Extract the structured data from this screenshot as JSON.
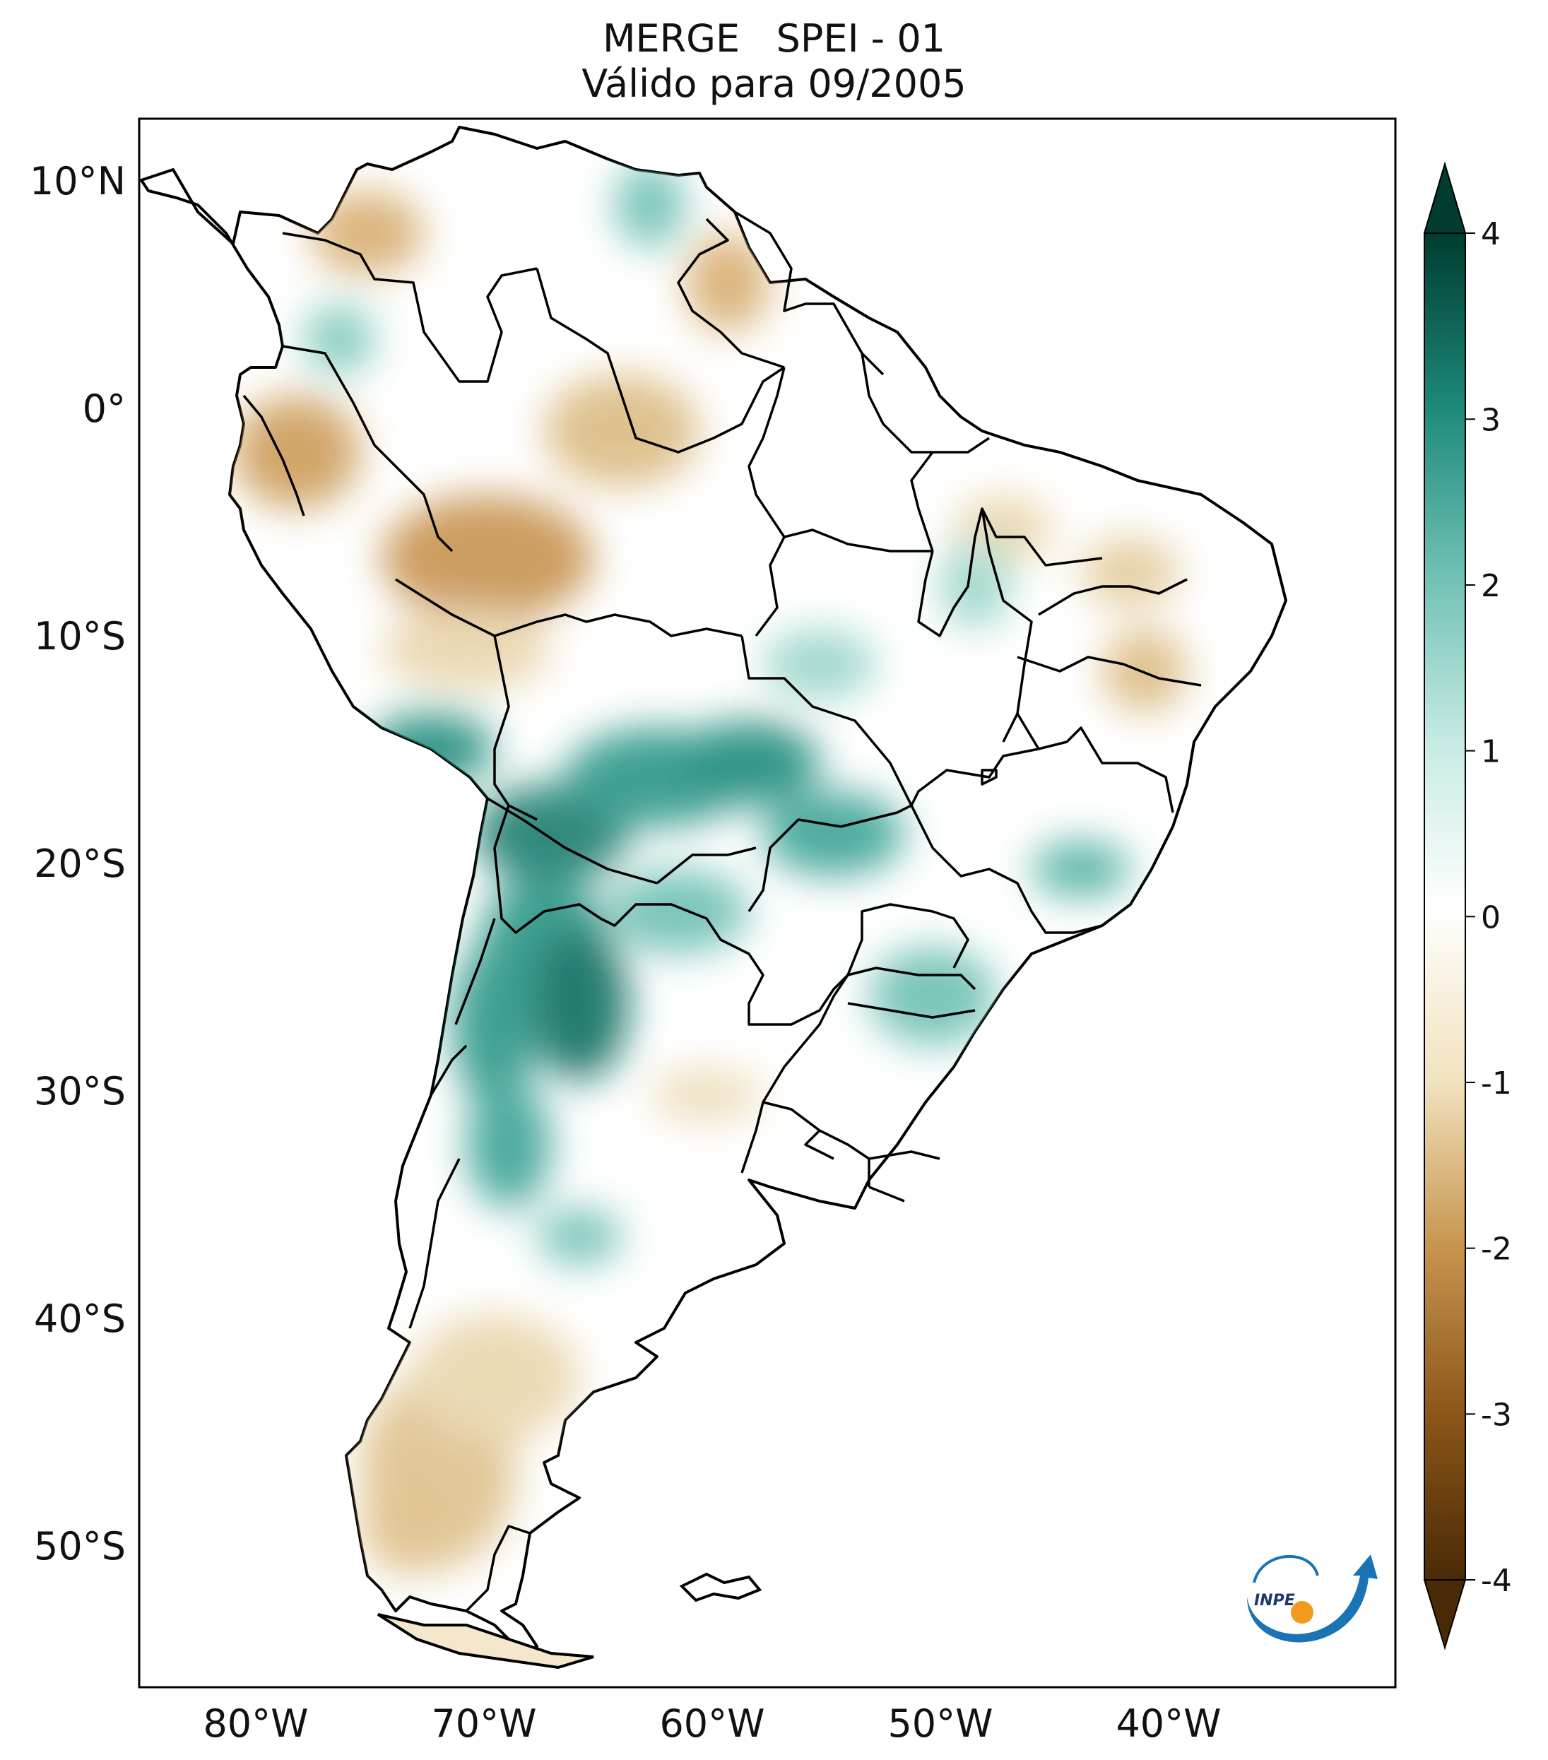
{
  "title": {
    "line1": "MERGE   SPEI - 01",
    "line2": "Válido para 09/2005"
  },
  "axes": {
    "lat_labels": [
      "10°N",
      "0°",
      "10°S",
      "20°S",
      "30°S",
      "40°S",
      "50°S"
    ],
    "lat_values": [
      10,
      0,
      -10,
      -20,
      -30,
      -40,
      -50
    ],
    "lon_labels": [
      "80°W",
      "70°W",
      "60°W",
      "50°W",
      "40°W"
    ],
    "lon_values": [
      -80,
      -70,
      -60,
      -50,
      -40
    ],
    "lon_range": [
      -85,
      -30
    ],
    "lat_range": [
      -56,
      12.8
    ]
  },
  "colorbar": {
    "min": -4,
    "max": 4,
    "tick_values": [
      4,
      3,
      2,
      1,
      0,
      -1,
      -2,
      -3,
      -4
    ],
    "tick_labels": [
      "4",
      "3",
      "2",
      "1",
      "0",
      "-1",
      "-2",
      "-3",
      "-4"
    ],
    "colors": {
      "low": "#4a2a06",
      "mid_low": "#d9b77a",
      "center": "#ffffff",
      "mid_high": "#6dbfb2",
      "high": "#003c30"
    }
  },
  "logo": {
    "text": "INPE"
  },
  "palette": {
    "land": "#ffffff",
    "wet": "#1e8a7a",
    "dry": "#c9a56a",
    "border": "#000000",
    "orange": "#f29a1f",
    "blue": "#1a73b5"
  }
}
